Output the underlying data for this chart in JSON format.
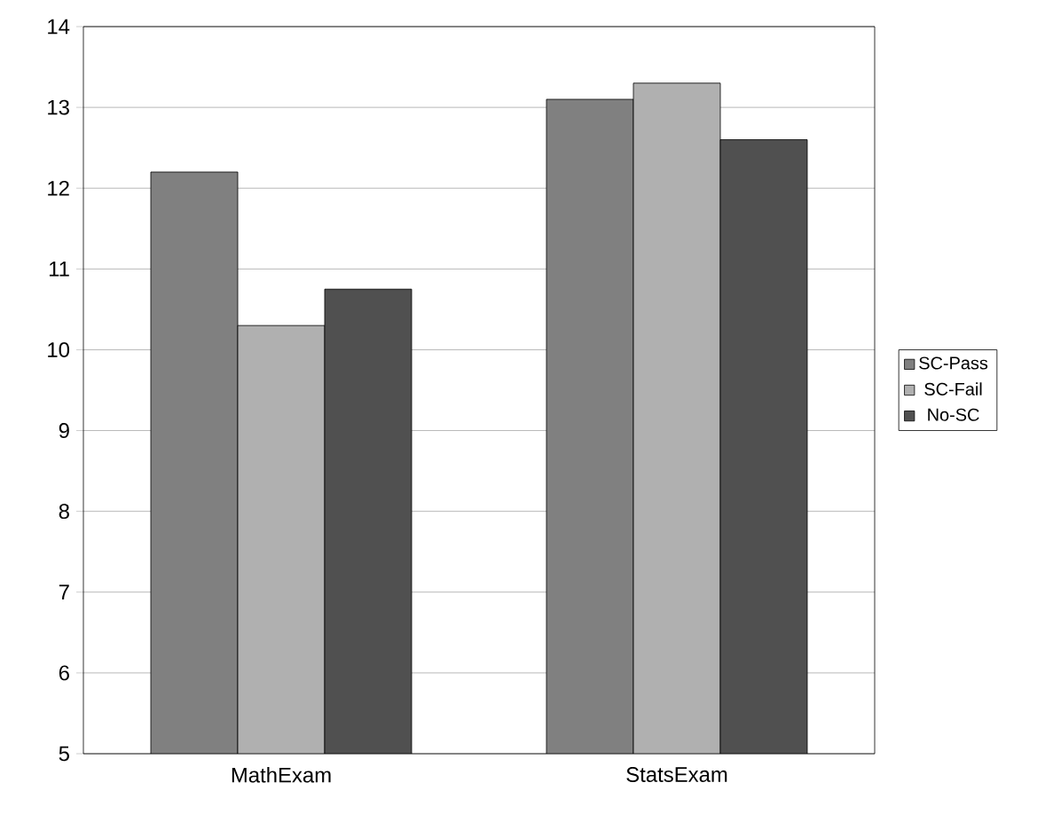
{
  "chart_data": {
    "type": "bar",
    "categories": [
      "MathExam",
      "StatsExam"
    ],
    "series": [
      {
        "name": "SC-Pass",
        "color": "#808080",
        "values": [
          12.2,
          13.1
        ]
      },
      {
        "name": "SC-Fail",
        "color": "#b0b0b0",
        "values": [
          10.3,
          13.3
        ]
      },
      {
        "name": "No-SC",
        "color": "#505050",
        "values": [
          10.75,
          12.6
        ]
      }
    ],
    "ylim": [
      5,
      14
    ],
    "yticks": [
      5,
      6,
      7,
      8,
      9,
      10,
      11,
      12,
      13,
      14
    ],
    "grid": "y",
    "legend": "right"
  }
}
